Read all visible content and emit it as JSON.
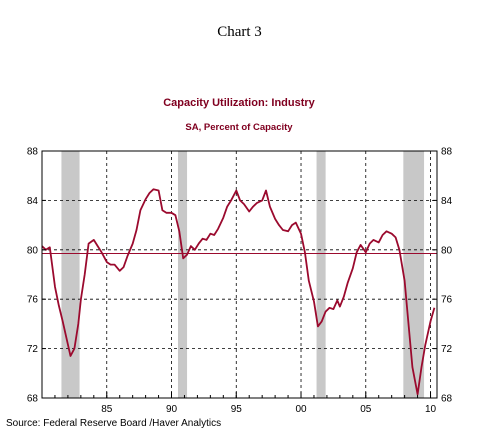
{
  "header": {
    "chart_number": "Chart 3"
  },
  "source_note": "Source:  Federal Reserve Board /Haver Analytics",
  "colors": {
    "series": "#9b0a2e",
    "title": "#800020",
    "recession": "#c8c8c8",
    "grid": "#000000"
  },
  "chart_data": {
    "type": "line",
    "title": "Capacity Utilization: Industry",
    "subtitle": "SA, Percent of Capacity",
    "xlabel": "",
    "ylabel": "",
    "xlim": [
      1980.0,
      2010.5
    ],
    "ylim": [
      68,
      88
    ],
    "x_ticks": [
      1985,
      1990,
      1995,
      2000,
      2005,
      2010
    ],
    "x_tick_labels": [
      "85",
      "90",
      "95",
      "00",
      "05",
      "10"
    ],
    "y_ticks": [
      68,
      72,
      76,
      80,
      84,
      88
    ],
    "y_tick_labels": [
      "68",
      "72",
      "76",
      "80",
      "84",
      "88"
    ],
    "grid": true,
    "recessions": [
      [
        1981.5,
        1982.9
      ],
      [
        1990.5,
        1991.2
      ],
      [
        2001.2,
        2001.9
      ],
      [
        2007.9,
        2009.5
      ]
    ],
    "reference_line": 79.7,
    "series": [
      {
        "x": [
          1980.0,
          1980.3,
          1980.6,
          1981.0,
          1981.3,
          1981.6,
          1981.9,
          1982.2,
          1982.5,
          1982.8,
          1983.0,
          1983.3,
          1983.6,
          1984.0,
          1984.3,
          1984.6,
          1985.0,
          1985.3,
          1985.6,
          1986.0,
          1986.3,
          1986.6,
          1987.0,
          1987.3,
          1987.6,
          1988.0,
          1988.3,
          1988.6,
          1989.0,
          1989.3,
          1989.6,
          1990.0,
          1990.3,
          1990.6,
          1990.9,
          1991.2,
          1991.5,
          1991.8,
          1992.1,
          1992.4,
          1992.7,
          1993.0,
          1993.3,
          1993.6,
          1994.0,
          1994.3,
          1994.6,
          1995.0,
          1995.3,
          1995.6,
          1996.0,
          1996.3,
          1996.6,
          1997.0,
          1997.3,
          1997.6,
          1998.0,
          1998.3,
          1998.6,
          1999.0,
          1999.3,
          1999.6,
          2000.0,
          2000.3,
          2000.6,
          2001.0,
          2001.3,
          2001.6,
          2001.9,
          2002.2,
          2002.5,
          2002.8,
          2003.0,
          2003.3,
          2003.6,
          2004.0,
          2004.3,
          2004.6,
          2005.0,
          2005.3,
          2005.6,
          2006.0,
          2006.3,
          2006.6,
          2007.0,
          2007.3,
          2007.6,
          2008.0,
          2008.3,
          2008.6,
          2009.0,
          2009.3,
          2009.6,
          2010.0,
          2010.3
        ],
        "y": [
          80.3,
          80.0,
          80.2,
          77.0,
          75.5,
          74.2,
          72.8,
          71.4,
          72.0,
          74.0,
          76.0,
          78.0,
          80.5,
          80.8,
          80.3,
          79.8,
          79.0,
          78.8,
          78.8,
          78.3,
          78.6,
          79.5,
          80.5,
          81.6,
          83.2,
          84.1,
          84.6,
          84.9,
          84.8,
          83.2,
          83.0,
          83.0,
          82.8,
          81.5,
          79.3,
          79.6,
          80.3,
          80.0,
          80.5,
          80.9,
          80.8,
          81.3,
          81.2,
          81.7,
          82.6,
          83.5,
          84.0,
          84.8,
          84.0,
          83.7,
          83.1,
          83.5,
          83.8,
          84.0,
          84.8,
          83.5,
          82.5,
          82.0,
          81.6,
          81.5,
          82.0,
          82.2,
          81.3,
          79.8,
          77.5,
          75.8,
          73.8,
          74.2,
          75.0,
          75.3,
          75.2,
          75.9,
          75.4,
          76.2,
          77.3,
          78.5,
          79.8,
          80.4,
          79.8,
          80.5,
          80.8,
          80.6,
          81.2,
          81.5,
          81.3,
          81.0,
          80.0,
          77.5,
          74.0,
          70.5,
          68.3,
          70.5,
          72.3,
          74.2,
          75.3
        ]
      }
    ]
  }
}
